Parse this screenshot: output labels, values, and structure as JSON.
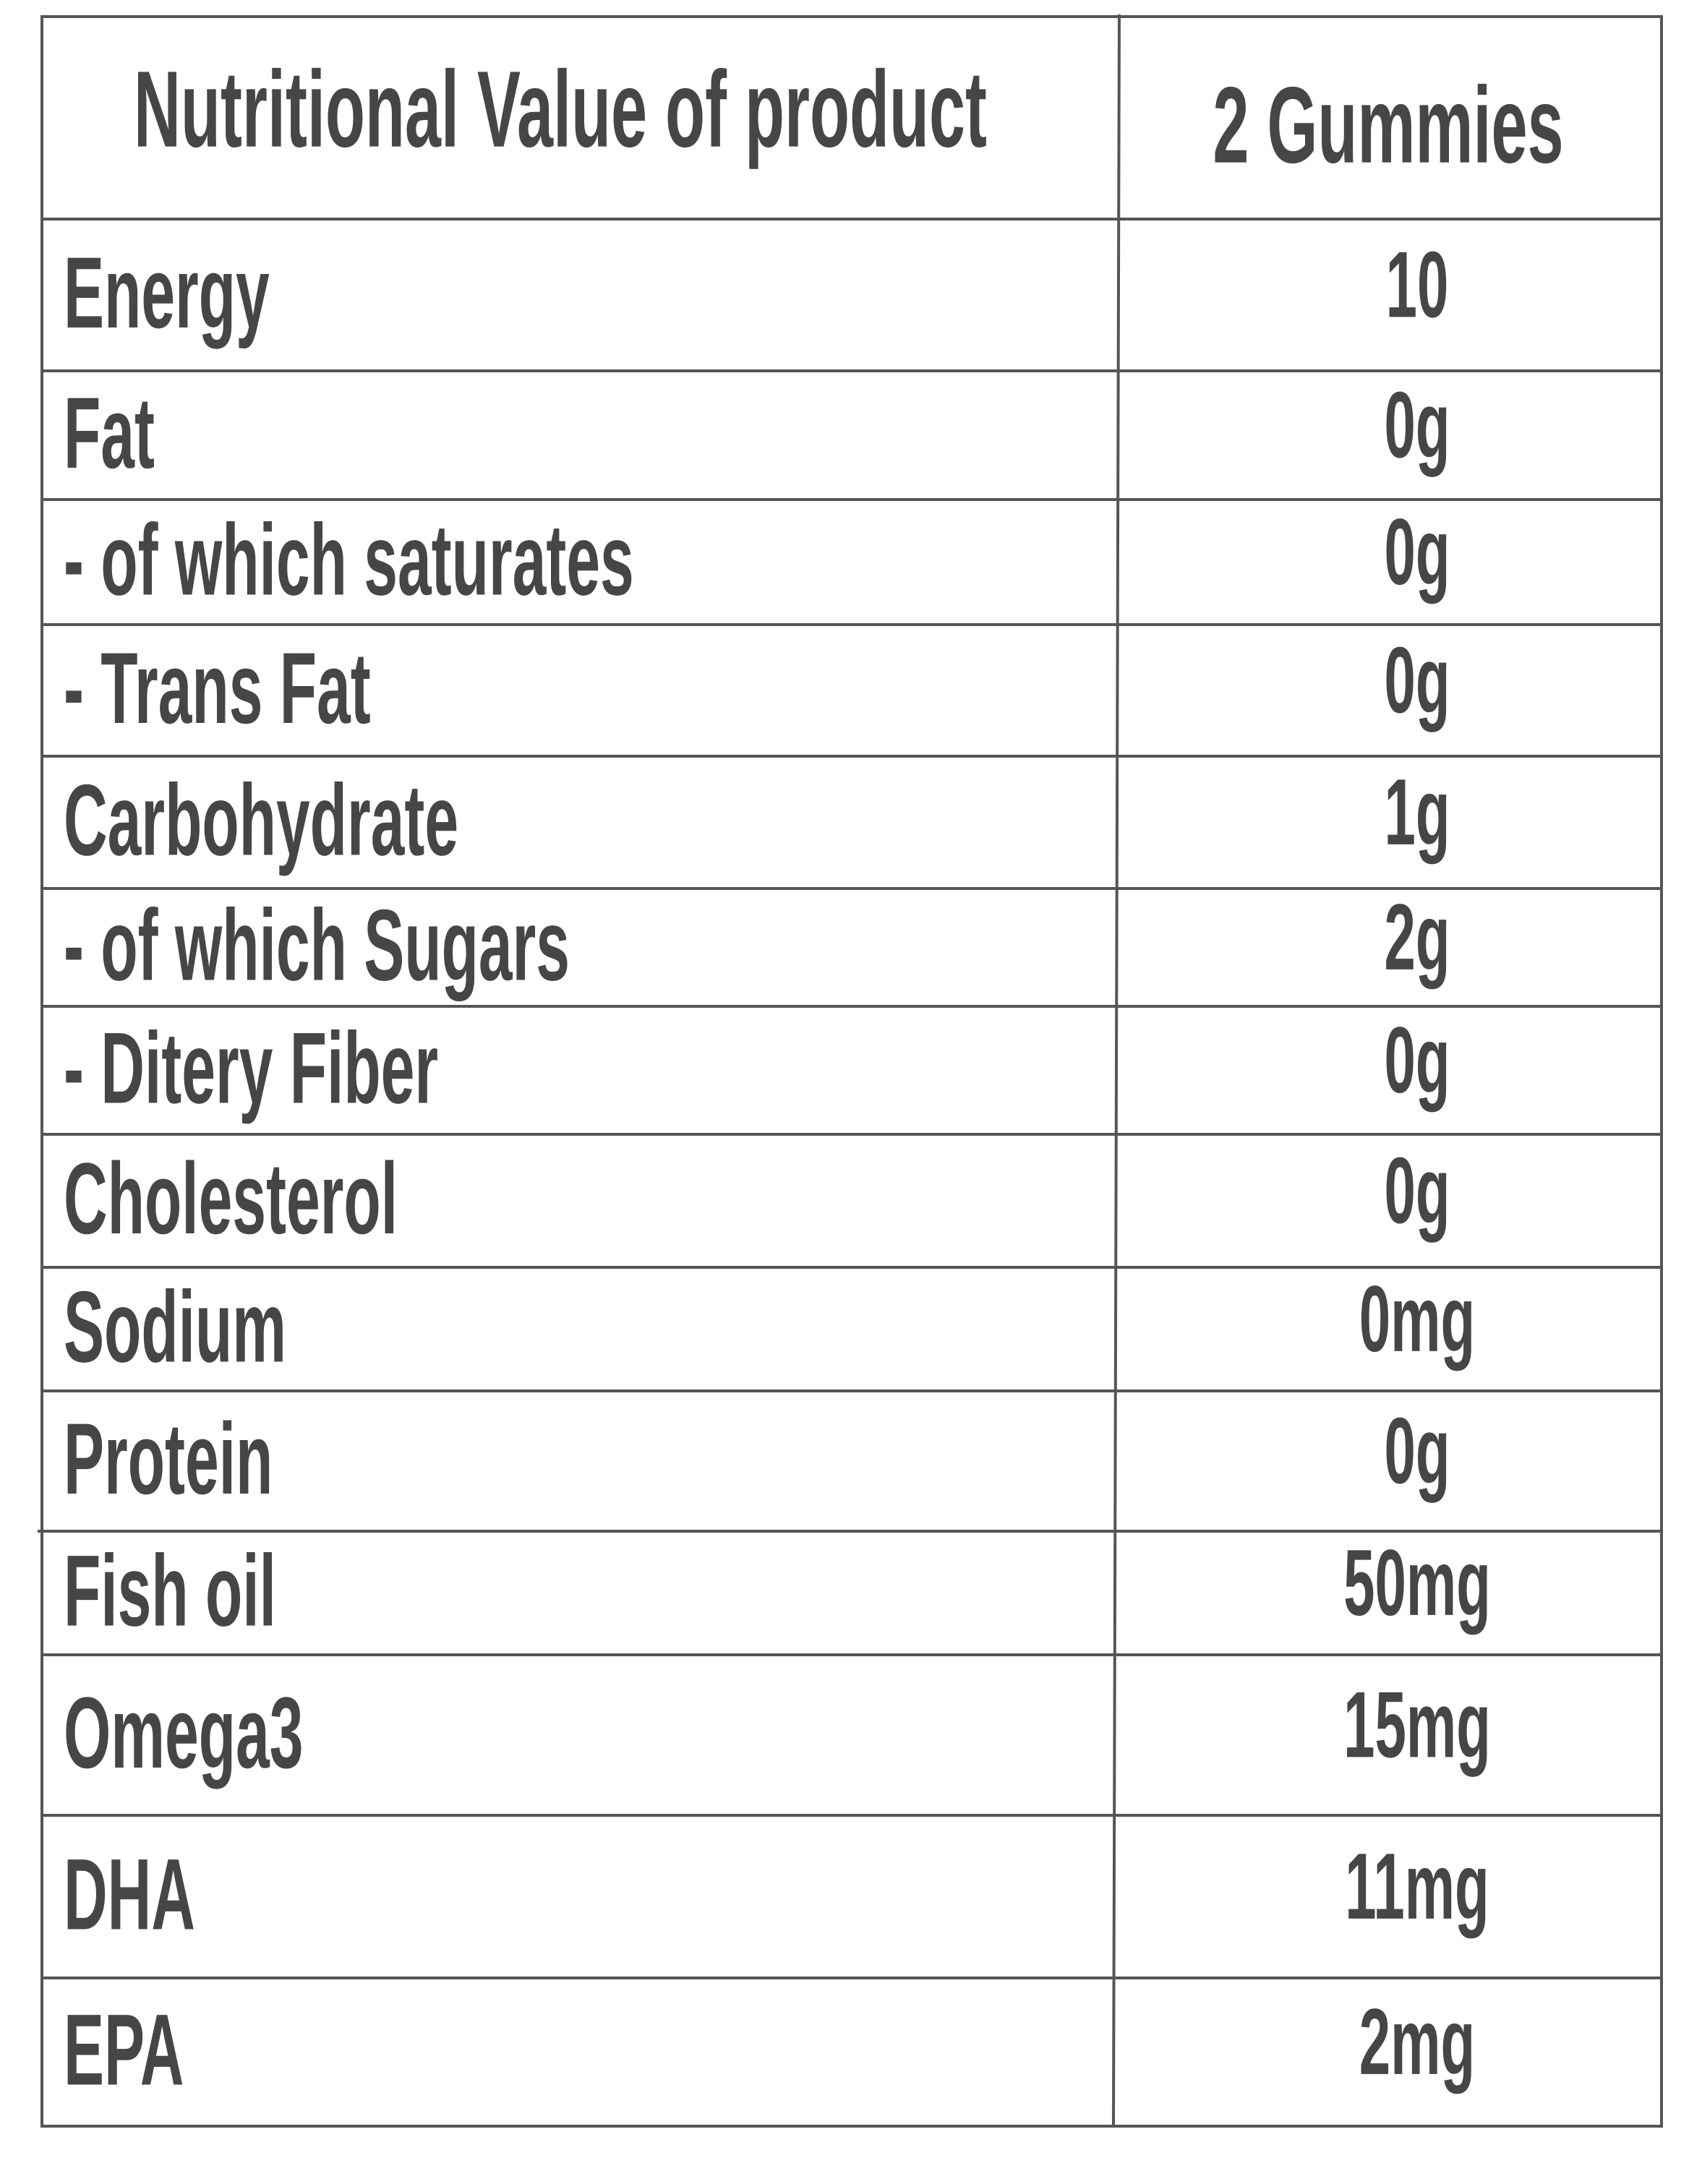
{
  "header": {
    "title": "Nutritional Value of product",
    "column": "2 Gummies"
  },
  "table": {
    "rows": [
      [
        "Energy",
        "10"
      ],
      [
        "Fat",
        "0g"
      ],
      [
        "- of which saturates",
        "0g"
      ],
      [
        "- Trans Fat",
        "0g"
      ],
      [
        "Carbohydrate",
        "1g"
      ],
      [
        "- of which Sugars",
        "2g"
      ],
      [
        "- Ditery Fiber",
        "0g"
      ],
      [
        "Cholesterol",
        "0g"
      ],
      [
        "Sodium",
        "0mg"
      ],
      [
        "Protein",
        "0g"
      ],
      [
        "Fish oil",
        "50mg"
      ],
      [
        "Omega3",
        "15mg"
      ],
      [
        "DHA",
        "11mg"
      ],
      [
        "EPA",
        "2mg"
      ]
    ]
  }
}
